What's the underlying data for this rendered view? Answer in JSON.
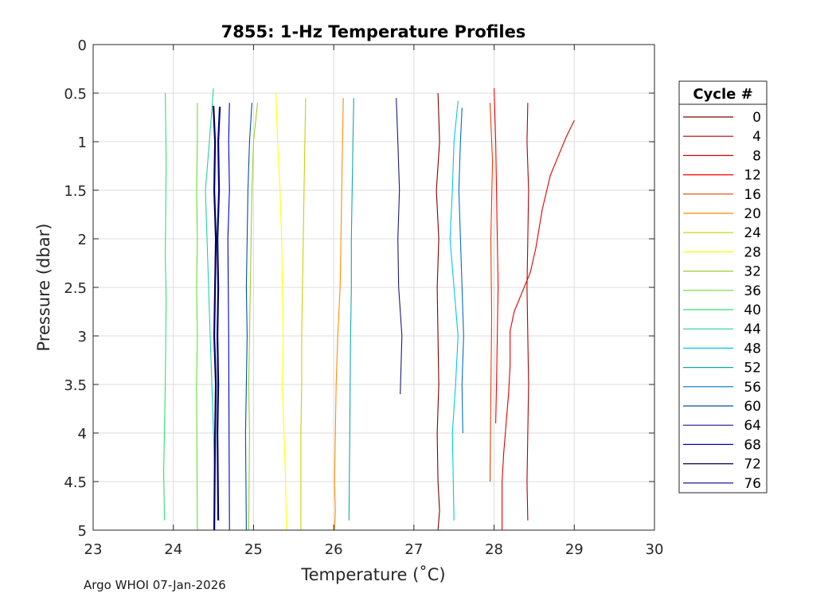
{
  "chart_data": {
    "type": "line",
    "title": "7855: 1-Hz Temperature Profiles",
    "xlabel": "Temperature (˚C)",
    "ylabel": "Pressure (dbar)",
    "xlim": [
      23,
      30
    ],
    "ylim": [
      0,
      5
    ],
    "y_reversed": true,
    "grid": true,
    "xticks": [
      23,
      24,
      25,
      26,
      27,
      28,
      29,
      30
    ],
    "yticks": [
      0,
      0.5,
      1,
      1.5,
      2,
      2.5,
      3,
      3.5,
      4,
      4.5,
      5
    ],
    "legend": {
      "title": "Cycle #",
      "placement": "right"
    },
    "series": [
      {
        "name": "0",
        "color": "#800000",
        "x": [
          27.3,
          27.32,
          27.28,
          27.31,
          27.29,
          27.3,
          27.31,
          27.29,
          27.3,
          27.32,
          27.3
        ],
        "y": [
          0.5,
          1.0,
          1.5,
          2.0,
          2.5,
          3.0,
          3.5,
          4.0,
          4.5,
          4.8,
          5.0
        ]
      },
      {
        "name": "4",
        "color": "#b30000",
        "x": [
          28.42,
          28.41,
          28.43,
          28.42,
          28.41,
          28.42,
          28.43,
          28.42,
          28.41,
          28.42
        ],
        "y": [
          0.6,
          1.0,
          1.5,
          2.0,
          2.5,
          3.0,
          3.5,
          4.0,
          4.5,
          4.9
        ]
      },
      {
        "name": "8",
        "color": "#dd0000",
        "x": [
          29.0,
          28.9,
          28.8,
          28.7,
          28.6,
          28.52,
          28.45,
          28.35,
          28.25,
          28.2,
          28.2,
          28.18,
          28.15,
          28.12,
          28.1,
          28.1,
          28.1
        ],
        "y": [
          0.78,
          0.95,
          1.15,
          1.35,
          1.7,
          2.1,
          2.35,
          2.55,
          2.75,
          2.95,
          3.3,
          3.6,
          3.9,
          4.2,
          4.5,
          4.8,
          5.0
        ]
      },
      {
        "name": "12",
        "color": "#ff0000",
        "x": [
          28.0,
          28.02,
          28.03,
          28.04,
          28.05,
          28.04,
          28.03,
          28.02
        ],
        "y": [
          0.45,
          1.0,
          1.5,
          2.0,
          2.5,
          3.0,
          3.5,
          3.9
        ]
      },
      {
        "name": "16",
        "color": "#e04000",
        "x": [
          27.95,
          27.98,
          27.96,
          27.97,
          27.96,
          27.95
        ],
        "y": [
          0.6,
          1.2,
          2.0,
          2.8,
          3.6,
          4.5
        ]
      },
      {
        "name": "20",
        "color": "#ff8c00",
        "x": [
          26.12,
          26.11,
          26.1,
          26.09,
          26.08,
          26.05,
          26.03,
          26.02,
          26.01,
          26.02,
          26.01
        ],
        "y": [
          0.55,
          1.0,
          1.5,
          2.0,
          2.5,
          3.0,
          3.5,
          4.0,
          4.5,
          4.8,
          5.0
        ]
      },
      {
        "name": "24",
        "color": "#c8d200",
        "x": [
          25.65,
          25.64,
          25.63,
          25.62,
          25.61,
          25.6,
          25.6,
          25.59,
          25.59
        ],
        "y": [
          0.55,
          1.0,
          1.5,
          2.0,
          2.5,
          3.0,
          3.5,
          4.0,
          5.0
        ]
      },
      {
        "name": "28",
        "color": "#ffff00",
        "x": [
          25.28,
          25.3,
          25.33,
          25.35,
          25.36,
          25.37,
          25.36,
          25.38,
          25.4,
          25.41
        ],
        "y": [
          0.5,
          1.0,
          1.5,
          2.0,
          2.5,
          3.0,
          3.5,
          4.0,
          4.5,
          5.0
        ]
      },
      {
        "name": "32",
        "color": "#9acd32",
        "x": [
          25.05,
          25.0,
          24.98,
          24.97,
          24.96,
          24.95,
          24.94,
          24.95,
          24.94
        ],
        "y": [
          0.6,
          1.0,
          1.5,
          2.0,
          2.5,
          3.0,
          3.5,
          4.0,
          5.0
        ]
      },
      {
        "name": "36",
        "color": "#66dd33",
        "x": [
          24.3,
          24.3,
          24.29,
          24.3,
          24.29,
          24.3,
          24.29,
          24.3
        ],
        "y": [
          0.6,
          1.0,
          1.5,
          2.0,
          2.5,
          3.0,
          3.5,
          5.0
        ]
      },
      {
        "name": "40",
        "color": "#33dd77",
        "x": [
          23.9,
          23.91,
          23.9,
          23.91,
          23.9,
          23.88,
          23.89
        ],
        "y": [
          0.5,
          1.2,
          2.2,
          2.6,
          3.5,
          4.4,
          4.9
        ]
      },
      {
        "name": "44",
        "color": "#20d2a0",
        "x": [
          24.5,
          24.45,
          24.4,
          24.42,
          24.44,
          24.46,
          24.48,
          24.5,
          24.52
        ],
        "y": [
          0.45,
          1.0,
          1.5,
          2.0,
          2.5,
          3.0,
          3.5,
          4.0,
          4.5
        ]
      },
      {
        "name": "48",
        "color": "#00c8e6",
        "x": [
          27.55,
          27.5,
          27.48,
          27.45,
          27.5,
          27.55,
          27.52,
          27.48,
          27.5
        ],
        "y": [
          0.58,
          1.0,
          1.5,
          2.0,
          2.5,
          3.0,
          3.5,
          4.0,
          4.9
        ]
      },
      {
        "name": "52",
        "color": "#10a8a8",
        "x": [
          26.25,
          26.24,
          26.23,
          26.22,
          26.22,
          26.21,
          26.2,
          26.19
        ],
        "y": [
          0.55,
          1.0,
          1.5,
          2.0,
          2.5,
          3.0,
          4.0,
          4.9
        ]
      },
      {
        "name": "56",
        "color": "#0070c0",
        "x": [
          27.6,
          27.58,
          27.56,
          27.58,
          27.6,
          27.62,
          27.6,
          27.61
        ],
        "y": [
          0.65,
          1.0,
          1.5,
          2.0,
          2.5,
          3.0,
          3.5,
          4.0
        ]
      },
      {
        "name": "60",
        "color": "#0050a0",
        "x": [
          24.98,
          24.95,
          24.93,
          24.92,
          24.91,
          24.92,
          24.9,
          24.91
        ],
        "y": [
          0.6,
          1.0,
          1.5,
          2.0,
          2.5,
          3.0,
          4.0,
          5.0
        ]
      },
      {
        "name": "64",
        "color": "#1a1a80",
        "x": [
          26.78,
          26.8,
          26.82,
          26.8,
          26.81,
          26.85,
          26.83
        ],
        "y": [
          0.55,
          1.0,
          1.5,
          2.0,
          2.5,
          3.0,
          3.6
        ]
      },
      {
        "name": "68",
        "color": "#0000c8",
        "x": [
          24.7,
          24.69,
          24.7,
          24.68,
          24.69,
          24.7
        ],
        "y": [
          0.6,
          1.0,
          1.5,
          2.0,
          3.0,
          5.0
        ]
      },
      {
        "name": "72",
        "color": "#000060",
        "x": [
          24.5,
          24.52,
          24.51,
          24.53,
          24.52,
          24.51,
          24.53,
          24.52,
          24.51
        ],
        "y": [
          0.63,
          1.0,
          1.5,
          2.0,
          2.5,
          3.0,
          3.5,
          4.0,
          5.0
        ]
      },
      {
        "name": "76",
        "color": "#000080",
        "x": [
          24.58,
          24.56,
          24.57,
          24.55,
          24.56,
          24.55,
          24.56,
          24.55,
          24.56
        ],
        "y": [
          0.64,
          1.0,
          1.5,
          2.0,
          2.5,
          3.0,
          3.5,
          4.0,
          4.9
        ]
      }
    ]
  },
  "footer": "Argo WHOI 07-Jan-2026"
}
